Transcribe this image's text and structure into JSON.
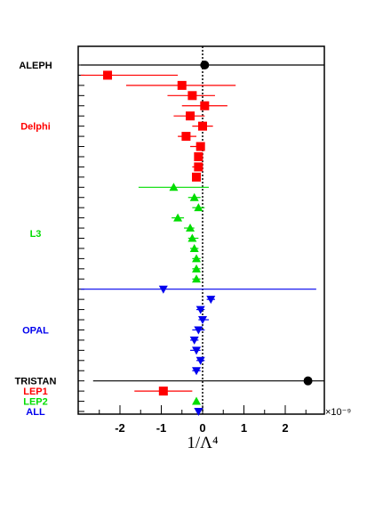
{
  "chart_data": {
    "type": "scatter",
    "orientation": "horizontal-error-bars",
    "xlabel": "1/Λ⁴",
    "x_multiplier": "×10⁻⁹",
    "xlim": [
      -2.95,
      2.95
    ],
    "x_ticks": [
      -2,
      -1,
      0,
      1,
      2
    ],
    "reference_line_x": 0,
    "groups": [
      {
        "name": "ALEPH",
        "color": "#000000",
        "marker": "circle"
      },
      {
        "name": "Delphi",
        "color": "#ff0000",
        "marker": "square"
      },
      {
        "name": "L3",
        "color": "#00dd00",
        "marker": "triangle-up"
      },
      {
        "name": "OPAL",
        "color": "#0000ee",
        "marker": "triangle-down"
      },
      {
        "name": "TRISTAN",
        "color": "#000000",
        "marker": "circle"
      },
      {
        "name": "LEP1",
        "color": "#ff0000",
        "marker": "square"
      },
      {
        "name": "LEP2",
        "color": "#00dd00",
        "marker": "triangle-up"
      },
      {
        "name": "ALL",
        "color": "#0000ee",
        "marker": "triangle-down"
      }
    ],
    "points": [
      {
        "group": "ALEPH",
        "x": 0.05,
        "lo": -2.95,
        "hi": 2.95
      },
      {
        "group": "Delphi",
        "x": -2.3,
        "lo": -2.95,
        "hi": -0.6
      },
      {
        "group": "Delphi",
        "x": -0.5,
        "lo": -1.85,
        "hi": 0.8
      },
      {
        "group": "Delphi",
        "x": -0.25,
        "lo": -0.85,
        "hi": 0.3
      },
      {
        "group": "Delphi",
        "x": 0.05,
        "lo": -0.5,
        "hi": 0.6
      },
      {
        "group": "Delphi",
        "x": -0.3,
        "lo": -0.7,
        "hi": 0.05
      },
      {
        "group": "Delphi",
        "x": 0.0,
        "lo": -0.25,
        "hi": 0.25
      },
      {
        "group": "Delphi",
        "x": -0.4,
        "lo": -0.6,
        "hi": -0.15
      },
      {
        "group": "Delphi",
        "x": -0.05,
        "lo": -0.3,
        "hi": 0.05
      },
      {
        "group": "Delphi",
        "x": -0.1,
        "lo": -0.2,
        "hi": 0.0
      },
      {
        "group": "Delphi",
        "x": -0.1,
        "lo": -0.25,
        "hi": 0.0
      },
      {
        "group": "Delphi",
        "x": -0.15,
        "lo": -0.25,
        "hi": -0.05
      },
      {
        "group": "L3",
        "x": -0.7,
        "lo": -1.55,
        "hi": 0.15
      },
      {
        "group": "L3",
        "x": -0.2,
        "lo": -0.35,
        "hi": -0.05
      },
      {
        "group": "L3",
        "x": -0.1,
        "lo": -0.25,
        "hi": 0.05
      },
      {
        "group": "L3",
        "x": -0.6,
        "lo": -0.75,
        "hi": -0.45
      },
      {
        "group": "L3",
        "x": -0.3,
        "lo": -0.45,
        "hi": -0.2
      },
      {
        "group": "L3",
        "x": -0.25,
        "lo": -0.35,
        "hi": -0.1
      },
      {
        "group": "L3",
        "x": -0.2,
        "lo": -0.3,
        "hi": -0.1
      },
      {
        "group": "L3",
        "x": -0.15,
        "lo": -0.25,
        "hi": -0.05
      },
      {
        "group": "L3",
        "x": -0.15,
        "lo": -0.25,
        "hi": -0.05
      },
      {
        "group": "L3",
        "x": -0.15,
        "lo": -0.25,
        "hi": -0.05
      },
      {
        "group": "OPAL",
        "x": -0.95,
        "lo": -2.95,
        "hi": 2.75
      },
      {
        "group": "OPAL",
        "x": 0.2,
        "lo": 0.1,
        "hi": 0.3
      },
      {
        "group": "OPAL",
        "x": -0.05,
        "lo": -0.15,
        "hi": 0.05
      },
      {
        "group": "OPAL",
        "x": 0.0,
        "lo": -0.1,
        "hi": 0.15
      },
      {
        "group": "OPAL",
        "x": -0.1,
        "lo": -0.25,
        "hi": 0.05
      },
      {
        "group": "OPAL",
        "x": -0.2,
        "lo": -0.3,
        "hi": -0.1
      },
      {
        "group": "OPAL",
        "x": -0.15,
        "lo": -0.3,
        "hi": -0.05
      },
      {
        "group": "OPAL",
        "x": -0.05,
        "lo": -0.15,
        "hi": 0.05
      },
      {
        "group": "OPAL",
        "x": -0.15,
        "lo": -0.25,
        "hi": -0.05
      },
      {
        "group": "TRISTAN",
        "x": 2.55,
        "lo": -2.65,
        "hi": 2.95
      },
      {
        "group": "LEP1",
        "x": -0.95,
        "lo": -1.65,
        "hi": -0.25
      },
      {
        "group": "LEP2",
        "x": -0.15,
        "lo": -0.2,
        "hi": -0.1
      },
      {
        "group": "ALL",
        "x": -0.1,
        "lo": -0.15,
        "hi": -0.05
      }
    ]
  }
}
